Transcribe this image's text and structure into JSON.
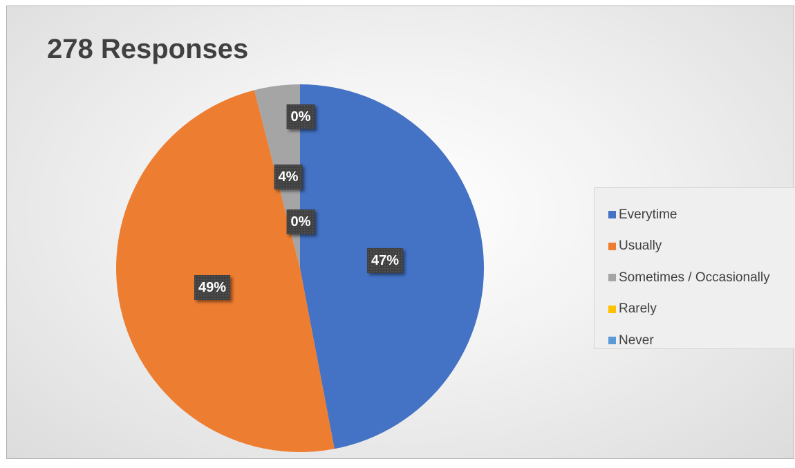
{
  "chart_data": {
    "type": "pie",
    "title": "278 Responses",
    "categories": [
      "Everytime",
      "Usually",
      "Sometimes / Occasionally",
      "Rarely",
      "Never"
    ],
    "values": [
      47,
      49,
      4,
      0,
      0
    ],
    "data_labels": [
      "47%",
      "49%",
      "4%",
      "0%",
      "0%"
    ],
    "colors": [
      "#4472c4",
      "#ed7d31",
      "#a5a5a5",
      "#ffc000",
      "#5b9bd5"
    ],
    "legend_position": "right",
    "start_angle": "top, clockwise"
  }
}
